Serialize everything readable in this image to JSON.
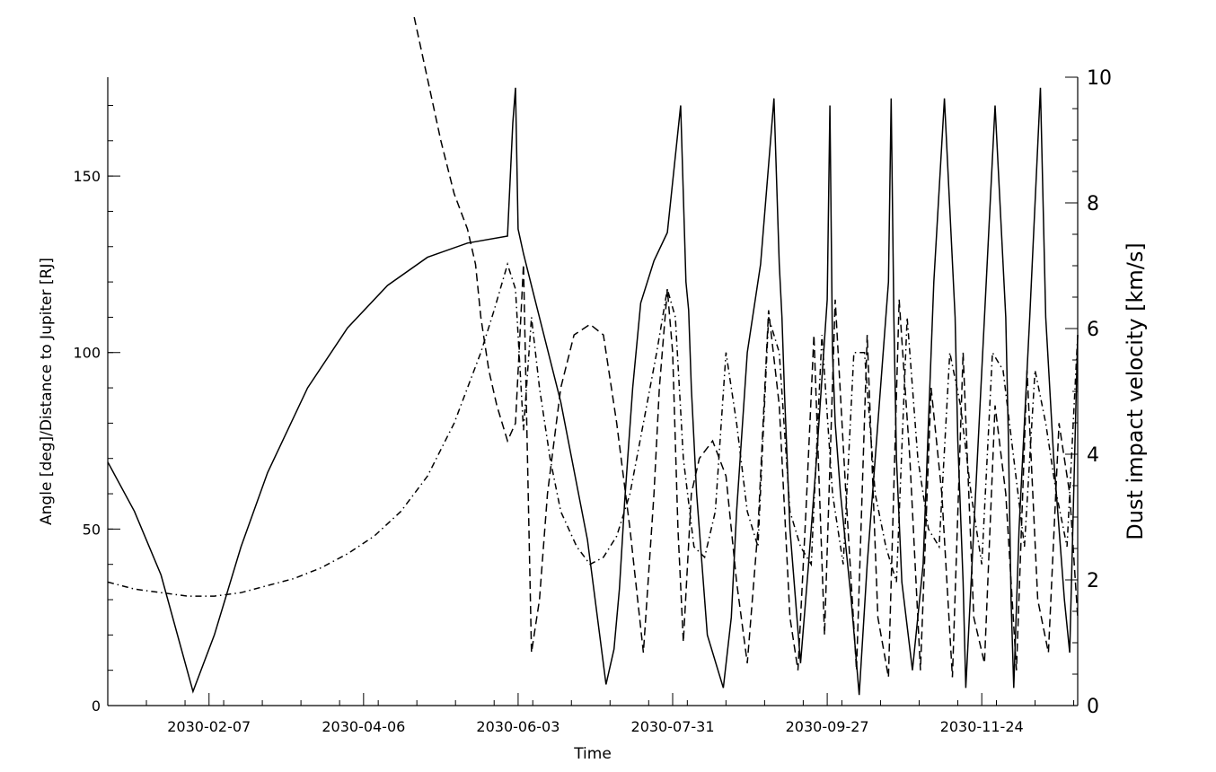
{
  "chart_data": {
    "type": "line",
    "title": "",
    "xlabel": "Time",
    "ylabel": "Angle [deg]/Distance to Jupiter [RJ]",
    "y2label": "Dust impact velocity [km/s]",
    "xlim": [
      0,
      364
    ],
    "ylim": [
      0,
      178
    ],
    "y2lim": [
      0,
      10
    ],
    "x_ticks": [
      {
        "label": "2030-02-07",
        "value": 38
      },
      {
        "label": "2030-04-06",
        "value": 96
      },
      {
        "label": "2030-06-03",
        "value": 154
      },
      {
        "label": "2030-07-31",
        "value": 212
      },
      {
        "label": "2030-09-27",
        "value": 270
      },
      {
        "label": "2030-11-24",
        "value": 328
      }
    ],
    "y_ticks": [
      0,
      50,
      100,
      150
    ],
    "y2_ticks": [
      0,
      2,
      4,
      6,
      8,
      10
    ],
    "grid": false,
    "legend": "none",
    "series": [
      {
        "axis": "left",
        "style": "solid",
        "x": [
          0,
          10,
          20,
          32,
          40,
          50,
          60,
          75,
          90,
          105,
          120,
          135,
          150,
          152,
          153,
          154,
          156,
          160,
          170,
          180,
          187,
          190,
          192,
          194,
          197,
          200,
          205,
          210,
          215,
          217,
          218,
          219,
          221,
          225,
          231,
          234,
          236,
          240,
          245,
          250,
          252,
          253,
          254,
          256,
          260,
          263,
          266,
          270,
          271,
          272,
          273,
          275,
          279,
          282,
          285,
          289,
          293,
          294,
          295,
          296,
          298,
          302,
          306,
          308,
          310,
          314,
          318,
          319,
          321,
          322,
          325,
          329,
          333,
          337,
          338,
          339,
          340,
          342,
          346,
          350,
          352,
          355,
          359,
          361,
          364
        ],
        "y": [
          69,
          55,
          37,
          4,
          20,
          45,
          66,
          90,
          107,
          119,
          127,
          131,
          133,
          165,
          175,
          135,
          128,
          116,
          86,
          47,
          6,
          16,
          33,
          58,
          90,
          114,
          126,
          134,
          170,
          120,
          112,
          90,
          60,
          20,
          5,
          25,
          55,
          100,
          125,
          172,
          125,
          110,
          88,
          50,
          12,
          40,
          70,
          115,
          170,
          100,
          80,
          60,
          30,
          3,
          40,
          80,
          120,
          172,
          110,
          70,
          35,
          10,
          40,
          80,
          120,
          172,
          110,
          75,
          35,
          5,
          50,
          110,
          170,
          110,
          75,
          30,
          5,
          50,
          110,
          175,
          110,
          70,
          30,
          15,
          105
        ]
      },
      {
        "axis": "left",
        "style": "dashed",
        "x": [
          115,
          125,
          130,
          135,
          138,
          140,
          143,
          146,
          150,
          153,
          156,
          159,
          162,
          165,
          170,
          175,
          181,
          186,
          191,
          196,
          201,
          205,
          207,
          210,
          212,
          214,
          216,
          219,
          222,
          227,
          232,
          236,
          240,
          244,
          248,
          252,
          256,
          259,
          262,
          265,
          269,
          273,
          277,
          281,
          285,
          289,
          293,
          297,
          301,
          305,
          309,
          313,
          317,
          321,
          325,
          329,
          333,
          337,
          341,
          345,
          349,
          353,
          357,
          361,
          364
        ],
        "y": [
          195,
          160,
          145,
          135,
          125,
          110,
          95,
          85,
          75,
          80,
          125,
          15,
          30,
          60,
          90,
          105,
          108,
          105,
          80,
          50,
          15,
          60,
          90,
          118,
          100,
          50,
          18,
          60,
          70,
          75,
          65,
          35,
          12,
          50,
          112,
          85,
          25,
          10,
          55,
          105,
          20,
          115,
          60,
          10,
          105,
          25,
          8,
          115,
          70,
          10,
          90,
          60,
          8,
          100,
          25,
          12,
          85,
          60,
          10,
          95,
          30,
          15,
          80,
          60,
          25
        ]
      },
      {
        "axis": "left",
        "style": "dashdot",
        "x": [
          0,
          10,
          20,
          30,
          40,
          50,
          60,
          70,
          80,
          90,
          100,
          110,
          120,
          130,
          140,
          145,
          150,
          153,
          156,
          159,
          162,
          166,
          170,
          176,
          181,
          186,
          191,
          196,
          201,
          206,
          210,
          213,
          216,
          220,
          224,
          228,
          232,
          236,
          240,
          244,
          248,
          252,
          256,
          260,
          264,
          268,
          272,
          276,
          280,
          284,
          288,
          292,
          296,
          300,
          304,
          308,
          312,
          316,
          320,
          324,
          328,
          332,
          336,
          340,
          344,
          348,
          352,
          356,
          360,
          364
        ],
        "y": [
          35,
          33,
          32,
          31,
          31,
          32,
          34,
          36,
          39,
          43,
          48,
          55,
          65,
          80,
          100,
          112,
          125,
          118,
          78,
          110,
          90,
          70,
          55,
          45,
          40,
          42,
          48,
          60,
          80,
          100,
          118,
          110,
          70,
          45,
          42,
          55,
          100,
          80,
          55,
          45,
          110,
          100,
          55,
          45,
          40,
          105,
          60,
          40,
          100,
          100,
          60,
          45,
          35,
          110,
          70,
          50,
          45,
          100,
          85,
          60,
          40,
          100,
          95,
          70,
          45,
          95,
          80,
          60,
          45,
          105
        ]
      }
    ]
  }
}
